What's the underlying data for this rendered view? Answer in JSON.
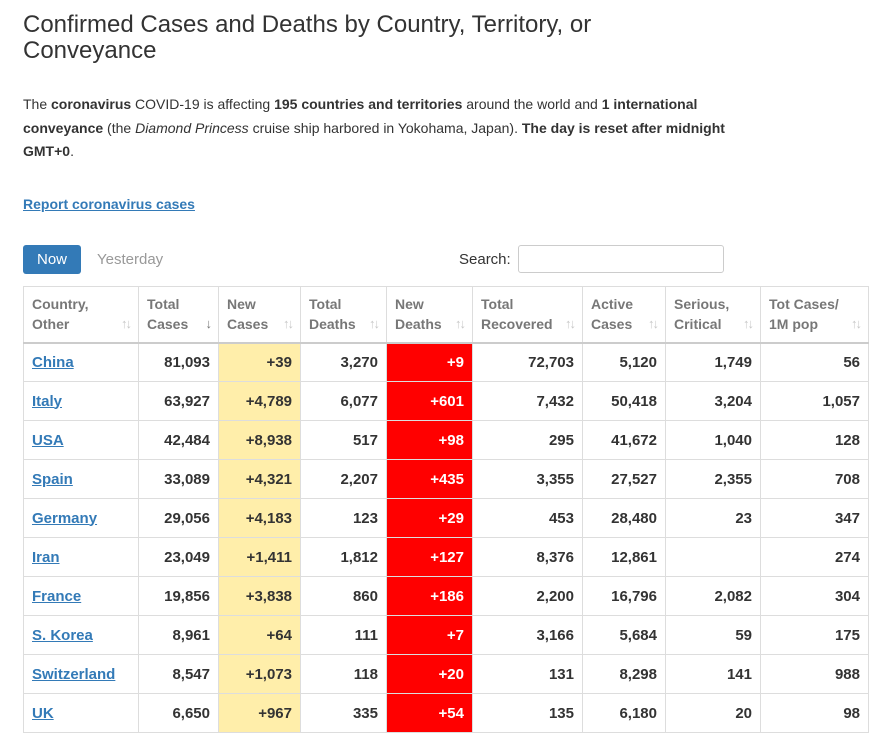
{
  "page_title": "Confirmed Cases and Deaths by Country, Territory, or Conveyance",
  "intro": {
    "p1": "The ",
    "b1": "coronavirus",
    "p2": " COVID-19 is affecting ",
    "b2": "195 countries and territories",
    "p3": " around the world and ",
    "b3": "1 international conveyance",
    "p4": " (the ",
    "i1": "Diamond Princess",
    "p5": " cruise ship harbored in Yokohama, Japan). ",
    "b4": "The day is reset after midnight GMT+0",
    "p6": "."
  },
  "report_link": "Report coronavirus cases",
  "tabs": {
    "now": "Now",
    "yesterday": "Yesterday"
  },
  "search": {
    "label": "Search:",
    "placeholder": "",
    "value": ""
  },
  "colors": {
    "accent": "#337ab7",
    "new_cases_bg": "#ffeeaa",
    "new_deaths_bg": "#ff0000"
  },
  "table": {
    "headers": [
      {
        "line1": "Country,",
        "line2": "Other",
        "sort": "↑↓"
      },
      {
        "line1": "Total",
        "line2": "Cases",
        "sort": "↓",
        "sort_active": true
      },
      {
        "line1": "New",
        "line2": "Cases",
        "sort": "↑↓"
      },
      {
        "line1": "Total",
        "line2": "Deaths",
        "sort": "↑↓"
      },
      {
        "line1": "New",
        "line2": "Deaths",
        "sort": "↑↓"
      },
      {
        "line1": "Total",
        "line2": "Recovered",
        "sort": "↑↓"
      },
      {
        "line1": "Active",
        "line2": "Cases",
        "sort": "↑↓"
      },
      {
        "line1": "Serious,",
        "line2": "Critical",
        "sort": "↑↓"
      },
      {
        "line1": "Tot Cases/",
        "line2": "1M pop",
        "sort": "↑↓"
      }
    ],
    "rows": [
      {
        "country": "China",
        "total_cases": "81,093",
        "new_cases": "+39",
        "total_deaths": "3,270",
        "new_deaths": "+9",
        "total_recovered": "72,703",
        "active_cases": "5,120",
        "serious_critical": "1,749",
        "per_1m": "56"
      },
      {
        "country": "Italy",
        "total_cases": "63,927",
        "new_cases": "+4,789",
        "total_deaths": "6,077",
        "new_deaths": "+601",
        "total_recovered": "7,432",
        "active_cases": "50,418",
        "serious_critical": "3,204",
        "per_1m": "1,057"
      },
      {
        "country": "USA",
        "total_cases": "42,484",
        "new_cases": "+8,938",
        "total_deaths": "517",
        "new_deaths": "+98",
        "total_recovered": "295",
        "active_cases": "41,672",
        "serious_critical": "1,040",
        "per_1m": "128"
      },
      {
        "country": "Spain",
        "total_cases": "33,089",
        "new_cases": "+4,321",
        "total_deaths": "2,207",
        "new_deaths": "+435",
        "total_recovered": "3,355",
        "active_cases": "27,527",
        "serious_critical": "2,355",
        "per_1m": "708"
      },
      {
        "country": "Germany",
        "total_cases": "29,056",
        "new_cases": "+4,183",
        "total_deaths": "123",
        "new_deaths": "+29",
        "total_recovered": "453",
        "active_cases": "28,480",
        "serious_critical": "23",
        "per_1m": "347"
      },
      {
        "country": "Iran",
        "total_cases": "23,049",
        "new_cases": "+1,411",
        "total_deaths": "1,812",
        "new_deaths": "+127",
        "total_recovered": "8,376",
        "active_cases": "12,861",
        "serious_critical": "",
        "per_1m": "274"
      },
      {
        "country": "France",
        "total_cases": "19,856",
        "new_cases": "+3,838",
        "total_deaths": "860",
        "new_deaths": "+186",
        "total_recovered": "2,200",
        "active_cases": "16,796",
        "serious_critical": "2,082",
        "per_1m": "304"
      },
      {
        "country": "S. Korea",
        "total_cases": "8,961",
        "new_cases": "+64",
        "total_deaths": "111",
        "new_deaths": "+7",
        "total_recovered": "3,166",
        "active_cases": "5,684",
        "serious_critical": "59",
        "per_1m": "175"
      },
      {
        "country": "Switzerland",
        "total_cases": "8,547",
        "new_cases": "+1,073",
        "total_deaths": "118",
        "new_deaths": "+20",
        "total_recovered": "131",
        "active_cases": "8,298",
        "serious_critical": "141",
        "per_1m": "988"
      },
      {
        "country": "UK",
        "total_cases": "6,650",
        "new_cases": "+967",
        "total_deaths": "335",
        "new_deaths": "+54",
        "total_recovered": "135",
        "active_cases": "6,180",
        "serious_critical": "20",
        "per_1m": "98"
      }
    ]
  }
}
